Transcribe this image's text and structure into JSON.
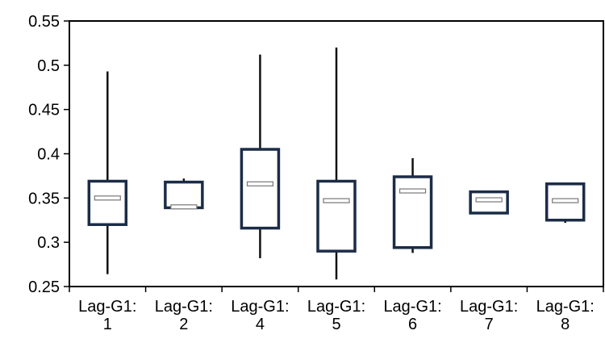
{
  "chart_data": {
    "type": "box",
    "title": "",
    "xlabel": "",
    "ylabel": "",
    "ylim": [
      0.25,
      0.55
    ],
    "y_ticks": [
      "0.25",
      "0.3",
      "0.35",
      "0.4",
      "0.45",
      "0.5",
      "0.55"
    ],
    "grid": false,
    "legend": "none",
    "categories": [
      [
        "Lag-G1:",
        "1"
      ],
      [
        "Lag-G1:",
        "2"
      ],
      [
        "Lag-G1:",
        "4"
      ],
      [
        "Lag-G1:",
        "5"
      ],
      [
        "Lag-G1:",
        "6"
      ],
      [
        "Lag-G1:",
        "7"
      ],
      [
        "Lag-G1:",
        "8"
      ]
    ],
    "boxes": [
      {
        "min": 0.264,
        "q1": 0.32,
        "median": 0.35,
        "q3": 0.369,
        "max": 0.493
      },
      {
        "min": 0.339,
        "q1": 0.339,
        "median": 0.34,
        "q3": 0.368,
        "max": 0.372
      },
      {
        "min": 0.282,
        "q1": 0.316,
        "median": 0.366,
        "q3": 0.405,
        "max": 0.512
      },
      {
        "min": 0.258,
        "q1": 0.29,
        "median": 0.347,
        "q3": 0.369,
        "max": 0.52
      },
      {
        "min": 0.288,
        "q1": 0.294,
        "median": 0.358,
        "q3": 0.374,
        "max": 0.395
      },
      {
        "min": 0.333,
        "q1": 0.333,
        "median": 0.348,
        "q3": 0.357,
        "max": 0.357
      },
      {
        "min": 0.322,
        "q1": 0.325,
        "median": 0.347,
        "q3": 0.366,
        "max": 0.366
      }
    ],
    "colors": {
      "box_stroke": "#1b2c47",
      "whisker": "#111111",
      "median_fill": "#ffffff",
      "median_stroke": "#777777",
      "axis": "#000000"
    }
  }
}
